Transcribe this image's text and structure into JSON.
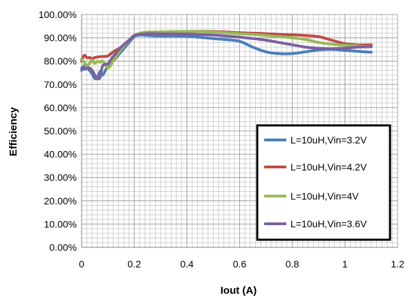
{
  "chart_data": {
    "type": "line",
    "title": "",
    "xlabel": "Iout (A)",
    "ylabel": "Efficiency",
    "xlim": [
      0,
      1.2
    ],
    "ylim": [
      0,
      1.0
    ],
    "x_ticks": [
      0,
      0.2,
      0.4,
      0.6,
      0.8,
      1,
      1.2
    ],
    "x_tick_labels": [
      "0",
      "0.2",
      "0.4",
      "0.6",
      "0.8",
      "1",
      "1.2"
    ],
    "y_ticks": [
      0,
      0.1,
      0.2,
      0.3,
      0.4,
      0.5,
      0.6,
      0.7,
      0.8,
      0.9,
      1.0
    ],
    "y_tick_labels": [
      "0.00%",
      "10.00%",
      "20.00%",
      "30.00%",
      "40.00%",
      "50.00%",
      "60.00%",
      "70.00%",
      "80.00%",
      "90.00%",
      "100.00%"
    ],
    "grid": true,
    "legend_position": "lower-right",
    "series": [
      {
        "name": "L=10uH,Vin=3.2V",
        "color": "#4a7ebb",
        "x": [
          0.0,
          0.01,
          0.02,
          0.03,
          0.04,
          0.05,
          0.06,
          0.07,
          0.08,
          0.1,
          0.12,
          0.15,
          0.18,
          0.2,
          0.22,
          0.25,
          0.3,
          0.35,
          0.4,
          0.45,
          0.5,
          0.55,
          0.6,
          0.65,
          0.7,
          0.75,
          0.8,
          0.85,
          0.9,
          0.95,
          1.0,
          1.05,
          1.1
        ],
        "y": [
          0.76,
          0.78,
          0.77,
          0.76,
          0.745,
          0.725,
          0.73,
          0.755,
          0.74,
          0.78,
          0.8,
          0.84,
          0.88,
          0.905,
          0.912,
          0.91,
          0.908,
          0.908,
          0.907,
          0.902,
          0.897,
          0.892,
          0.885,
          0.86,
          0.84,
          0.832,
          0.832,
          0.84,
          0.848,
          0.85,
          0.846,
          0.842,
          0.838
        ]
      },
      {
        "name": "L=10uH,Vin=4.2V",
        "color": "#be4b48",
        "x": [
          0.0,
          0.01,
          0.02,
          0.03,
          0.04,
          0.05,
          0.06,
          0.08,
          0.1,
          0.12,
          0.15,
          0.18,
          0.2,
          0.22,
          0.25,
          0.3,
          0.35,
          0.4,
          0.45,
          0.5,
          0.55,
          0.6,
          0.65,
          0.7,
          0.75,
          0.8,
          0.85,
          0.9,
          0.95,
          1.0,
          1.05,
          1.1
        ],
        "y": [
          0.8,
          0.825,
          0.815,
          0.815,
          0.81,
          0.815,
          0.818,
          0.82,
          0.822,
          0.84,
          0.86,
          0.89,
          0.91,
          0.918,
          0.92,
          0.923,
          0.925,
          0.927,
          0.928,
          0.927,
          0.925,
          0.922,
          0.92,
          0.918,
          0.915,
          0.913,
          0.91,
          0.905,
          0.89,
          0.875,
          0.87,
          0.87
        ]
      },
      {
        "name": "L=10uH,Vin=4V",
        "color": "#98b954",
        "x": [
          0.0,
          0.01,
          0.02,
          0.03,
          0.04,
          0.05,
          0.06,
          0.07,
          0.08,
          0.1,
          0.12,
          0.15,
          0.18,
          0.2,
          0.22,
          0.25,
          0.3,
          0.35,
          0.4,
          0.45,
          0.5,
          0.55,
          0.6,
          0.65,
          0.7,
          0.75,
          0.8,
          0.85,
          0.9,
          0.95,
          1.0,
          1.05,
          1.1
        ],
        "y": [
          0.81,
          0.795,
          0.78,
          0.79,
          0.805,
          0.79,
          0.8,
          0.795,
          0.8,
          0.77,
          0.8,
          0.85,
          0.89,
          0.91,
          0.92,
          0.925,
          0.926,
          0.927,
          0.928,
          0.927,
          0.925,
          0.922,
          0.918,
          0.915,
          0.91,
          0.905,
          0.9,
          0.893,
          0.88,
          0.873,
          0.868,
          0.865,
          0.862
        ]
      },
      {
        "name": "L=10uH,Vin=3.6V",
        "color": "#7d5fa0",
        "x": [
          0.0,
          0.01,
          0.02,
          0.03,
          0.04,
          0.05,
          0.06,
          0.07,
          0.08,
          0.1,
          0.12,
          0.15,
          0.18,
          0.2,
          0.22,
          0.25,
          0.3,
          0.35,
          0.4,
          0.45,
          0.5,
          0.55,
          0.6,
          0.65,
          0.7,
          0.75,
          0.8,
          0.85,
          0.9,
          0.95,
          1.0,
          1.05,
          1.1
        ],
        "y": [
          0.77,
          0.765,
          0.77,
          0.77,
          0.76,
          0.74,
          0.725,
          0.73,
          0.78,
          0.79,
          0.82,
          0.86,
          0.89,
          0.91,
          0.915,
          0.918,
          0.917,
          0.917,
          0.916,
          0.914,
          0.912,
          0.908,
          0.903,
          0.897,
          0.89,
          0.88,
          0.87,
          0.86,
          0.855,
          0.853,
          0.856,
          0.86,
          0.862
        ]
      }
    ]
  }
}
